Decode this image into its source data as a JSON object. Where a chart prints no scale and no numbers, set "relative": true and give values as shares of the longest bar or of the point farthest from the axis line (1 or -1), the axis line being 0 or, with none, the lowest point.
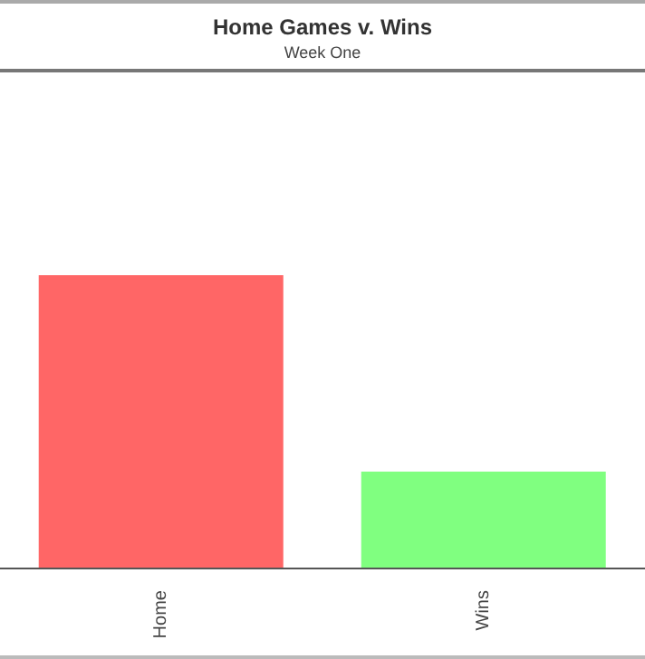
{
  "chart_data": {
    "type": "bar",
    "title": "Home Games v. Wins",
    "subtitle": "Week One",
    "categories": [
      "Home",
      "Wins"
    ],
    "values": [
      1,
      0.33
    ],
    "colors": [
      "#ff6666",
      "#80ff80"
    ],
    "relative": true,
    "grid": false
  }
}
